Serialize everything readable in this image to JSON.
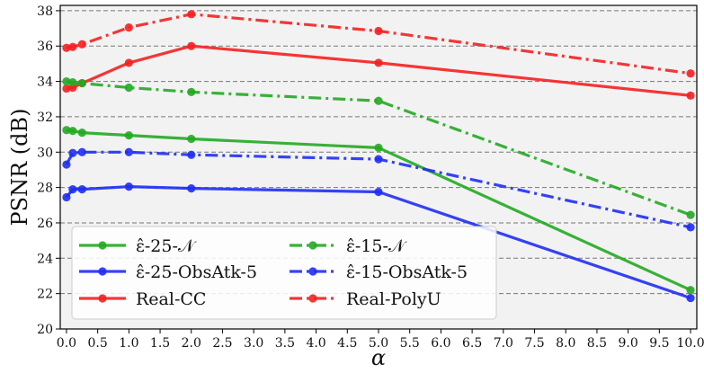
{
  "chart_data": {
    "type": "line",
    "xlabel": "α",
    "ylabel": "PSNR (dB)",
    "xlim": [
      -0.1,
      10.1
    ],
    "ylim": [
      20,
      38.3
    ],
    "x_ticks": [
      0,
      0.5,
      1,
      1.5,
      2,
      2.5,
      3,
      3.5,
      4,
      4.5,
      5,
      5.5,
      6,
      6.5,
      7,
      7.5,
      8,
      8.5,
      9,
      9.5,
      10
    ],
    "x_tick_labels": [
      "0.0",
      "0.5",
      "1.0",
      "1.5",
      "2.0",
      "2.5",
      "3.0",
      "3.5",
      "4.0",
      "4.5",
      "5.0",
      "5.5",
      "6.0",
      "6.5",
      "7.0",
      "7.5",
      "8.0",
      "8.5",
      "9.0",
      "9.5",
      "10.0"
    ],
    "y_ticks": [
      20,
      22,
      24,
      26,
      28,
      30,
      32,
      34,
      36,
      38
    ],
    "y_tick_labels": [
      "20",
      "22",
      "24",
      "26",
      "28",
      "30",
      "32",
      "34",
      "36",
      "38"
    ],
    "grid": "horizontal dashed",
    "background": "#f2f2f2",
    "legend_placement": "lower-left",
    "x": [
      0,
      0.1,
      0.25,
      1,
      2,
      5,
      10
    ],
    "series": [
      {
        "name": "ε̂-25-𝒩",
        "color": "#22aa22",
        "style": "solid",
        "values": [
          31.25,
          31.2,
          31.1,
          30.95,
          30.75,
          30.25,
          22.2
        ]
      },
      {
        "name": "ε̂-25-ObsAtk-5",
        "color": "#1f2ef5",
        "style": "solid",
        "values": [
          27.45,
          27.9,
          27.9,
          28.05,
          27.95,
          27.75,
          21.75
        ]
      },
      {
        "name": "Real-CC",
        "color": "#f52020",
        "style": "solid",
        "values": [
          33.6,
          33.65,
          33.9,
          35.05,
          36.0,
          35.05,
          33.2
        ]
      },
      {
        "name": "ε̂-15-𝒩",
        "color": "#22aa22",
        "style": "dashdot",
        "values": [
          34.0,
          33.95,
          33.9,
          33.65,
          33.4,
          32.9,
          26.45
        ]
      },
      {
        "name": "ε̂-15-ObsAtk-5",
        "color": "#1f2ef5",
        "style": "dashdot",
        "values": [
          29.3,
          29.95,
          30.0,
          30.0,
          29.85,
          29.6,
          25.75
        ]
      },
      {
        "name": "Real-PolyU",
        "color": "#f52020",
        "style": "dashdot",
        "values": [
          35.9,
          35.95,
          36.1,
          37.05,
          37.8,
          36.85,
          34.45
        ]
      }
    ]
  }
}
